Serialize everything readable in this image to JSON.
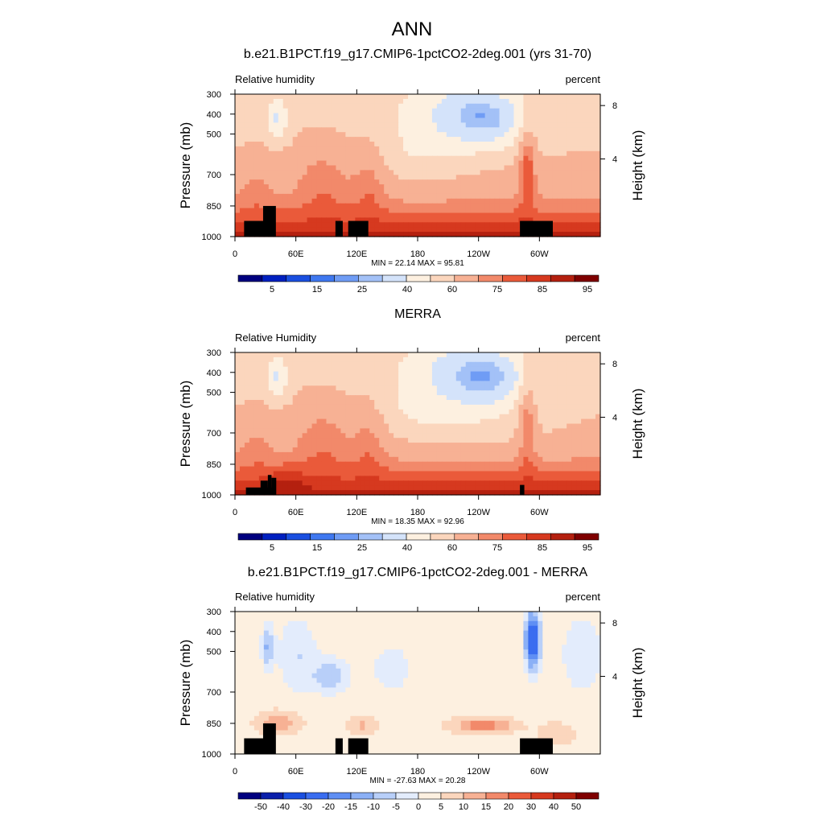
{
  "figure": {
    "title": "ANN"
  },
  "chart_data": [
    {
      "type": "heatmap",
      "title": "b.e21.B1PCT.f19_g17.CMIP6-1pctCO2-2deg.001 (yrs 31-70)",
      "left_label": "Relative humidity",
      "units": "percent",
      "ylabel": "Pressure (mb)",
      "y2label": "Height (km)",
      "yticks": [
        "300",
        "400",
        "500",
        "700",
        "850",
        "1000"
      ],
      "y2ticks": [
        "8",
        "4"
      ],
      "xticks": [
        "0",
        "60E",
        "120E",
        "180",
        "120W",
        "60W"
      ],
      "stats": "MIN =  22.14  MAX =  95.81",
      "colorbar": {
        "labels": [
          "5",
          "15",
          "25",
          "40",
          "60",
          "75",
          "85",
          "95"
        ],
        "colors": [
          "#00007f",
          "#0020c0",
          "#1a4fe0",
          "#3f78f0",
          "#6f9cf5",
          "#a3c1f7",
          "#d4e3fa",
          "#fdf0e0",
          "#fbd6bd",
          "#f7b194",
          "#f2896a",
          "#ea5a3a",
          "#d6391f",
          "#b4200f",
          "#7f0000"
        ]
      },
      "field": "full"
    },
    {
      "type": "heatmap",
      "title": "MERRA",
      "left_label": "Relative Humidity",
      "units": "percent",
      "ylabel": "Pressure (mb)",
      "y2label": "Height (km)",
      "yticks": [
        "300",
        "400",
        "500",
        "700",
        "850",
        "1000"
      ],
      "y2ticks": [
        "8",
        "4"
      ],
      "xticks": [
        "0",
        "60E",
        "120E",
        "180",
        "120W",
        "60W"
      ],
      "stats": "MIN =  18.35  MAX =  92.96",
      "colorbar": {
        "labels": [
          "5",
          "15",
          "25",
          "40",
          "60",
          "75",
          "85",
          "95"
        ],
        "colors": [
          "#00007f",
          "#0020c0",
          "#1a4fe0",
          "#3f78f0",
          "#6f9cf5",
          "#a3c1f7",
          "#d4e3fa",
          "#fdf0e0",
          "#fbd6bd",
          "#f7b194",
          "#f2896a",
          "#ea5a3a",
          "#d6391f",
          "#b4200f",
          "#7f0000"
        ]
      },
      "field": "full"
    },
    {
      "type": "heatmap",
      "title": "b.e21.B1PCT.f19_g17.CMIP6-1pctCO2-2deg.001 - MERRA",
      "left_label": "Relative humidity",
      "units": "percent",
      "ylabel": "Pressure (mb)",
      "y2label": "Height (km)",
      "yticks": [
        "300",
        "400",
        "500",
        "700",
        "850",
        "1000"
      ],
      "y2ticks": [
        "8",
        "4"
      ],
      "xticks": [
        "0",
        "60E",
        "120E",
        "180",
        "120W",
        "60W"
      ],
      "stats": "MIN = -27.63  MAX =  20.28",
      "colorbar": {
        "labels": [
          "-50",
          "-40",
          "-30",
          "-20",
          "-15",
          "-10",
          "-5",
          "0",
          "5",
          "10",
          "15",
          "20",
          "30",
          "40",
          "50"
        ],
        "colors": [
          "#00007f",
          "#0a1faa",
          "#1a4fe0",
          "#3a6df0",
          "#5f8ff4",
          "#8bb0f6",
          "#b8cff9",
          "#e3ecfc",
          "#fdf0e0",
          "#fbd6bd",
          "#f7b194",
          "#f2896a",
          "#ea5a3a",
          "#d6391f",
          "#b4200f",
          "#7f0000"
        ]
      },
      "field": "diff"
    }
  ]
}
